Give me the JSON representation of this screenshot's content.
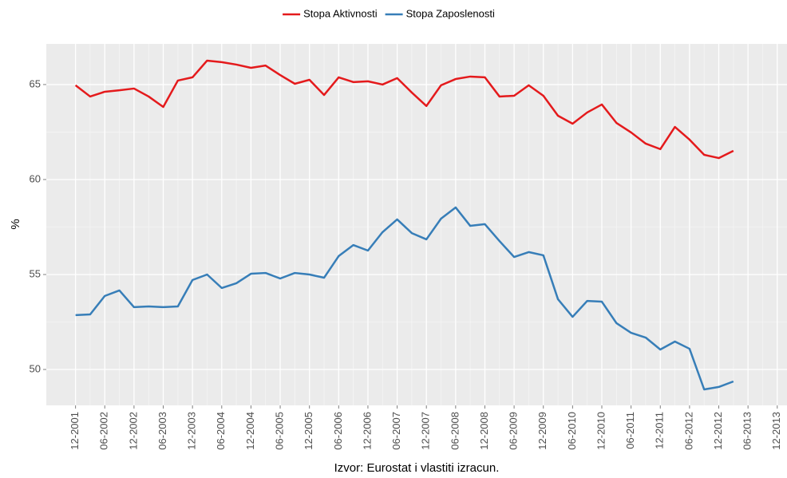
{
  "chart_data": {
    "type": "line",
    "x": [
      "12-2001",
      "03-2002",
      "06-2002",
      "09-2002",
      "12-2002",
      "03-2003",
      "06-2003",
      "09-2003",
      "12-2003",
      "03-2004",
      "06-2004",
      "09-2004",
      "12-2004",
      "03-2005",
      "06-2005",
      "09-2005",
      "12-2005",
      "03-2006",
      "06-2006",
      "09-2006",
      "12-2006",
      "03-2007",
      "06-2007",
      "09-2007",
      "12-2007",
      "03-2008",
      "06-2008",
      "09-2008",
      "12-2008",
      "03-2009",
      "06-2009",
      "09-2009",
      "12-2009",
      "03-2010",
      "06-2010",
      "09-2010",
      "12-2010",
      "03-2011",
      "06-2011",
      "09-2011",
      "12-2011",
      "03-2012",
      "06-2012",
      "09-2012",
      "12-2012",
      "03-2013"
    ],
    "series": [
      {
        "name": "Stopa Aktivnosti",
        "color": "#e41a1c",
        "values": [
          64.96,
          64.37,
          64.62,
          64.7,
          64.79,
          64.37,
          63.82,
          65.21,
          65.38,
          66.26,
          66.18,
          66.05,
          65.88,
          66.0,
          65.5,
          65.04,
          65.25,
          64.45,
          65.38,
          65.13,
          65.17,
          65.0,
          65.34,
          64.58,
          63.87,
          64.96,
          65.29,
          65.42,
          65.38,
          64.37,
          64.41,
          64.96,
          64.41,
          63.36,
          62.94,
          63.53,
          63.95,
          62.98,
          62.48,
          61.89,
          61.6,
          62.77,
          62.1,
          61.3,
          61.13,
          61.51
        ]
      },
      {
        "name": "Stopa Zaposlenosti",
        "color": "#377eb8",
        "values": [
          52.86,
          52.9,
          53.87,
          54.16,
          53.28,
          53.32,
          53.28,
          53.32,
          54.71,
          55.0,
          54.29,
          54.54,
          55.04,
          55.08,
          54.79,
          55.08,
          55.0,
          54.83,
          55.97,
          56.55,
          56.26,
          57.23,
          57.9,
          57.18,
          56.85,
          57.94,
          58.53,
          57.56,
          57.65,
          56.76,
          55.92,
          56.18,
          56.01,
          53.7,
          52.77,
          53.61,
          53.57,
          52.44,
          51.93,
          51.68,
          51.05,
          51.47,
          51.09,
          48.95,
          49.08,
          49.37
        ]
      }
    ],
    "xlim": [
      "06-2001",
      "02-2014"
    ],
    "xticks": [
      "12-2001",
      "06-2002",
      "12-2002",
      "06-2003",
      "12-2003",
      "06-2004",
      "12-2004",
      "06-2005",
      "12-2005",
      "06-2006",
      "12-2006",
      "06-2007",
      "12-2007",
      "06-2008",
      "12-2008",
      "06-2009",
      "12-2009",
      "06-2010",
      "12-2010",
      "06-2011",
      "12-2011",
      "06-2012",
      "12-2012",
      "06-2013",
      "12-2013"
    ],
    "ylim": [
      48.11,
      67.14
    ],
    "yticks": [
      50,
      55,
      60,
      65
    ],
    "ylabel": "%",
    "caption": "Izvor: Eurostat i vlastiti izracun.",
    "grid": true,
    "legend": "top"
  }
}
